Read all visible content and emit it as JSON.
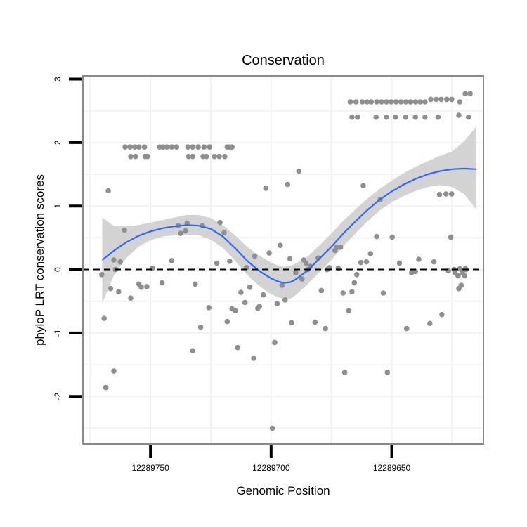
{
  "chart_data": {
    "type": "scatter",
    "title": "Conservation",
    "xlabel": "Genomic Position",
    "ylabel": "phyloP LRT conservation scores",
    "xlim": [
      12289778,
      12289612
    ],
    "ylim": [
      -2.75,
      3.05
    ],
    "xticks": [
      12289750,
      12289700,
      12289650
    ],
    "xtick_labels": [
      "12289750",
      "12289700",
      "12289650"
    ],
    "yticks": [
      -2,
      -1,
      0,
      1,
      2,
      3
    ],
    "ytick_labels": [
      "-2",
      "-1",
      "0",
      "1",
      "2",
      "3"
    ],
    "grid": true,
    "reference_line": {
      "y": 0,
      "style": "dashed"
    },
    "colors": {
      "points": "#8f8f8f",
      "smooth": "#3366ff",
      "band": "#d3d3d3",
      "panel_border": "#8a8a8a",
      "grid": "#f2f2f2"
    },
    "points": {
      "x": [
        12289770.2,
        12289769.2,
        12289768.5,
        12289767.5,
        12289766.5,
        12289765.2,
        12289765.2,
        12289764.5,
        12289763.2,
        12289762.5,
        12289760.8,
        12289758.2,
        12289754.8,
        12289753.8,
        12289751.5,
        12289749.2,
        12289745.2,
        12289741.2,
        12289738.5,
        12289737.5,
        12289735.5,
        12289734.8,
        12289732.5,
        12289731.5,
        12289729.2,
        12289728.5,
        12289725.8,
        12289722.5,
        12289721.2,
        12289719.5,
        12289718.2,
        12289717.2,
        12289716.2,
        12289714.8,
        12289713.8,
        12289712.5,
        12289710.8,
        12289710.2,
        12289708.8,
        12289707.2,
        12289706.8,
        12289705.5,
        12289704.8,
        12289703.2,
        12289702.2,
        12289700.8,
        12289699.5,
        12289698.5,
        12289697.5,
        12289696.2,
        12289695.5,
        12289694.2,
        12289693.2,
        12289692.2,
        12289691.5,
        12289689.8,
        12289688.5,
        12289687.2,
        12289686.5,
        12289685.5,
        12289684.8,
        12289683.8,
        12289681.8,
        12289680.5,
        12289679.2,
        12289677.5,
        12289676.8,
        12289675.8,
        12289673.5,
        12289672.8,
        12289672.2,
        12289671.2,
        12289670.2,
        12289669.5,
        12289667.8,
        12289666.5,
        12289665.5,
        12289664.5,
        12289662.8,
        12289661.8,
        12289660.5,
        12289658.8,
        12289656.2,
        12289654.8,
        12289653.5,
        12289651.8,
        12289649.8,
        12289646.8,
        12289643.8,
        12289641.8,
        12289640.2,
        12289638.8,
        12289634.2,
        12289632.5,
        12289630.2,
        12289629.2,
        12289627.5,
        12289626.5,
        12289625.5,
        12289625.2,
        12289624.2,
        12289623.8,
        12289622.5,
        12289622.2,
        12289621.8,
        12289621.2,
        12289620.8,
        12289619.8,
        12289619.5,
        12289619.5,
        12289619.2
      ],
      "y": [
        -0.08,
        -0.77,
        -1.86,
        1.24,
        -0.3,
        -1.6,
        0.15,
        0,
        -0.35,
        0.12,
        0.62,
        -0.45,
        -0.23,
        -0.28,
        -0.27,
        0.02,
        -0.21,
        0.14,
        0.69,
        0.57,
        0.61,
        0.73,
        -1.28,
        -0.23,
        -0.91,
        0.69,
        -0.6,
        0.1,
        0.74,
        0.58,
        -0.82,
        0.13,
        -0.62,
        -0.65,
        -1.23,
        -0.36,
        -0.52,
        0.03,
        -0.28,
        -1.4,
        0.21,
        -0.61,
        -0.58,
        -0.4,
        1.28,
        0.26,
        -2.5,
        -1.15,
        -0.54,
        0.38,
        -0.25,
        -0.48,
        1.34,
        0.17,
        -0.84,
        -0.05,
        1.55,
        -0.15,
        0.15,
        0.1,
        0,
        0.05,
        -0.83,
        0.18,
        -0.33,
        -0.93,
        0,
        0.03,
        0.3,
        0.35,
        0.02,
        0.35,
        -0.37,
        -1.62,
        -0.65,
        -0.35,
        -0.21,
        -0.08,
        0.11,
        1.32,
        0.12,
        0.25,
        0.52,
        1.1,
        -0.37,
        -1.62,
        0.51,
        0.1,
        -0.93,
        -0.05,
        -0.03,
        0.16,
        -0.85,
        0.12,
        1.18,
        -0.71,
        1.19,
        -0.02,
        0.51,
        1.19,
        0,
        -0.05,
        -0.1,
        -0.3,
        0.01,
        -0.25,
        -0.05,
        -0.1,
        0,
        0.01,
        0
      ],
      "y_comment": "scattered lower points"
    },
    "conserved_points": {
      "x": [
        12289760.5,
        12289758.5,
        12289756.5,
        12289754.8,
        12289752.5,
        12289758.2,
        12289756.2,
        12289752.2,
        12289751.2,
        12289746.2,
        12289744.8,
        12289743.2,
        12289741.2,
        12289739.2,
        12289734.5,
        12289732.5,
        12289730.2,
        12289727.8,
        12289725.5,
        12289734.2,
        12289732.5,
        12289728.2,
        12289726.8,
        12289723.5,
        12289721.5,
        12289719.2,
        12289717.2,
        12289718.2,
        12289716.2,
        12289667.2,
        12289664.8,
        12289662.2,
        12289660.2,
        12289658.5,
        12289656.2,
        12289654.2,
        12289652.2,
        12289650.2,
        12289648.2,
        12289646.2,
        12289644.2,
        12289642.2,
        12289640.2,
        12289638.2,
        12289636.2,
        12289633.8,
        12289631.5,
        12289629.5,
        12289627.2,
        12289625.2,
        12289621.8,
        12289619.5,
        12289617.5,
        12289666.5,
        12289664.2,
        12289656.5,
        12289652.2,
        12289648.5,
        12289644.2,
        12289640.2,
        12289636.2,
        12289630.8,
        12289622.2,
        12289618.2
      ],
      "y": [
        1.93,
        1.93,
        1.93,
        1.93,
        1.93,
        1.78,
        1.78,
        1.78,
        1.78,
        1.93,
        1.93,
        1.93,
        1.93,
        1.93,
        1.93,
        1.93,
        1.93,
        1.93,
        1.93,
        1.78,
        1.78,
        1.78,
        1.78,
        1.78,
        1.78,
        1.78,
        1.93,
        1.93,
        1.93,
        2.64,
        2.64,
        2.64,
        2.64,
        2.64,
        2.64,
        2.64,
        2.64,
        2.64,
        2.64,
        2.64,
        2.64,
        2.64,
        2.64,
        2.64,
        2.64,
        2.68,
        2.68,
        2.68,
        2.68,
        2.68,
        2.64,
        2.77,
        2.77,
        2.4,
        2.4,
        2.4,
        2.4,
        2.4,
        2.4,
        2.4,
        2.4,
        2.4,
        2.43,
        2.4
      ]
    },
    "smooth": {
      "x": [
        12289770,
        12289765,
        12289760,
        12289755,
        12289750,
        12289745,
        12289740,
        12289735,
        12289730,
        12289725,
        12289720,
        12289715,
        12289710,
        12289705,
        12289700,
        12289697,
        12289695,
        12289692,
        12289690,
        12289685,
        12289680,
        12289675,
        12289670,
        12289665,
        12289660,
        12289655,
        12289650,
        12289645,
        12289640,
        12289635,
        12289630,
        12289625,
        12289620,
        12289615
      ],
      "y": [
        0.15,
        0.3,
        0.43,
        0.53,
        0.6,
        0.65,
        0.68,
        0.7,
        0.69,
        0.64,
        0.52,
        0.34,
        0.14,
        -0.02,
        -0.14,
        -0.19,
        -0.21,
        -0.2,
        -0.16,
        -0.02,
        0.17,
        0.36,
        0.57,
        0.76,
        0.94,
        1.1,
        1.23,
        1.34,
        1.43,
        1.5,
        1.55,
        1.58,
        1.59,
        1.58
      ],
      "lower": [
        -0.53,
        -0.08,
        0.18,
        0.36,
        0.46,
        0.52,
        0.54,
        0.55,
        0.54,
        0.47,
        0.34,
        0.14,
        -0.08,
        -0.26,
        -0.39,
        -0.44,
        -0.46,
        -0.46,
        -0.41,
        -0.24,
        -0.04,
        0.15,
        0.37,
        0.57,
        0.76,
        0.93,
        1.06,
        1.16,
        1.24,
        1.3,
        1.33,
        1.3,
        1.19,
        0.95
      ],
      "upper": [
        0.82,
        0.68,
        0.68,
        0.7,
        0.74,
        0.78,
        0.82,
        0.86,
        0.86,
        0.81,
        0.7,
        0.54,
        0.36,
        0.22,
        0.11,
        0.06,
        0.04,
        0.06,
        0.09,
        0.2,
        0.38,
        0.57,
        0.77,
        0.95,
        1.12,
        1.27,
        1.4,
        1.52,
        1.62,
        1.71,
        1.79,
        1.86,
        2.02,
        2.25
      ]
    }
  }
}
